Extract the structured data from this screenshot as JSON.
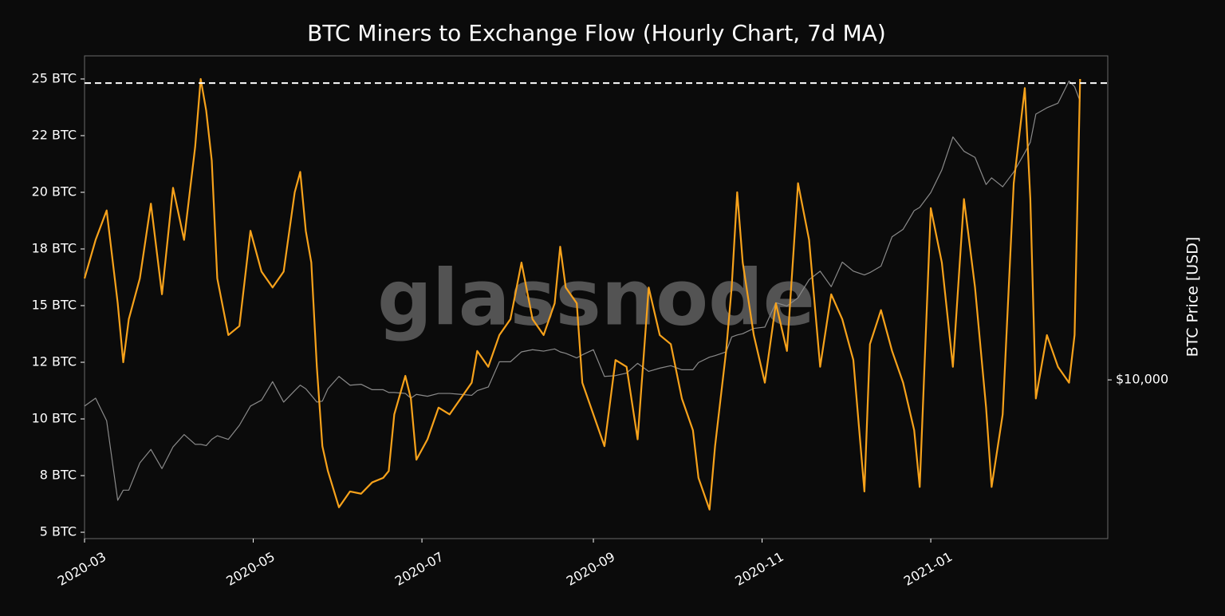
{
  "chart_data": {
    "type": "line",
    "title": "BTC Miners to Exchange Flow (Hourly Chart, 7d MA)",
    "y2_label": "BTC Price [USD]",
    "watermark": "glassnode",
    "x": [
      "2020-03-01",
      "2020-03-05",
      "2020-03-09",
      "2020-03-13",
      "2020-03-15",
      "2020-03-17",
      "2020-03-21",
      "2020-03-25",
      "2020-03-29",
      "2020-04-02",
      "2020-04-06",
      "2020-04-10",
      "2020-04-12",
      "2020-04-14",
      "2020-04-16",
      "2020-04-18",
      "2020-04-22",
      "2020-04-26",
      "2020-04-30",
      "2020-05-04",
      "2020-05-08",
      "2020-05-12",
      "2020-05-16",
      "2020-05-18",
      "2020-05-20",
      "2020-05-22",
      "2020-05-24",
      "2020-05-26",
      "2020-05-28",
      "2020-06-01",
      "2020-06-05",
      "2020-06-09",
      "2020-06-13",
      "2020-06-17",
      "2020-06-19",
      "2020-06-21",
      "2020-06-25",
      "2020-06-27",
      "2020-06-29",
      "2020-07-03",
      "2020-07-07",
      "2020-07-11",
      "2020-07-15",
      "2020-07-19",
      "2020-07-21",
      "2020-07-25",
      "2020-07-29",
      "2020-08-02",
      "2020-08-06",
      "2020-08-10",
      "2020-08-14",
      "2020-08-18",
      "2020-08-20",
      "2020-08-22",
      "2020-08-26",
      "2020-08-28",
      "2020-09-01",
      "2020-09-05",
      "2020-09-09",
      "2020-09-13",
      "2020-09-17",
      "2020-09-21",
      "2020-09-25",
      "2020-09-29",
      "2020-10-03",
      "2020-10-07",
      "2020-10-09",
      "2020-10-13",
      "2020-10-15",
      "2020-10-19",
      "2020-10-21",
      "2020-10-23",
      "2020-10-25",
      "2020-10-29",
      "2020-11-02",
      "2020-11-06",
      "2020-11-10",
      "2020-11-14",
      "2020-11-18",
      "2020-11-22",
      "2020-11-26",
      "2020-11-30",
      "2020-12-04",
      "2020-12-08",
      "2020-12-10",
      "2020-12-14",
      "2020-12-18",
      "2020-12-22",
      "2020-12-26",
      "2020-12-28",
      "2021-01-01",
      "2021-01-05",
      "2021-01-09",
      "2021-01-13",
      "2021-01-17",
      "2021-01-21",
      "2021-01-23",
      "2021-01-27",
      "2021-01-31",
      "2021-02-04",
      "2021-02-06",
      "2021-02-08",
      "2021-02-12",
      "2021-02-16",
      "2021-02-20",
      "2021-02-22",
      "2021-02-24"
    ],
    "series": [
      {
        "name": "BTC Miners to Exchange Flow",
        "color": "#f7a21b",
        "axis": "y",
        "values": [
          16.2,
          17.9,
          19.2,
          15.1,
          12.5,
          14.4,
          16.2,
          19.5,
          15.5,
          20.2,
          17.9,
          22,
          25,
          23.6,
          21.4,
          16.2,
          13.7,
          14.1,
          18.3,
          16.5,
          15.8,
          16.5,
          20,
          20.9,
          18.3,
          16.9,
          12.3,
          8.8,
          7.7,
          6.1,
          6.8,
          6.7,
          7.2,
          7.4,
          7.7,
          10.2,
          11.9,
          10.9,
          8.2,
          9.1,
          10.5,
          10.2,
          10.9,
          11.6,
          13,
          12.3,
          13.7,
          14.4,
          16.9,
          14.4,
          13.7,
          15.1,
          17.6,
          15.8,
          15.1,
          11.6,
          10.2,
          8.8,
          12.6,
          12.3,
          9.1,
          15.8,
          13.7,
          13.3,
          10.9,
          9.5,
          7.4,
          6,
          8.8,
          13,
          15.8,
          20,
          16.9,
          13.7,
          11.6,
          15.1,
          13,
          20.4,
          17.9,
          12.3,
          15.5,
          14.4,
          12.6,
          6.8,
          13.3,
          14.8,
          13,
          11.6,
          9.5,
          7,
          19.3,
          16.9,
          12.3,
          19.7,
          15.8,
          10.5,
          7,
          10.2,
          20.4,
          24.6,
          19.7,
          10.9,
          13.7,
          12.3,
          11.6,
          13.7,
          25
        ]
      },
      {
        "name": "BTC Price",
        "color": "#8a8a8a",
        "axis": "y2",
        "values": [
          8600,
          9000,
          7900,
          5000,
          5300,
          5300,
          6200,
          6700,
          6000,
          6800,
          7300,
          6900,
          6900,
          6850,
          7100,
          7250,
          7100,
          7700,
          8600,
          8900,
          9900,
          8800,
          9400,
          9700,
          9500,
          9150,
          8800,
          8850,
          9500,
          10200,
          9700,
          9750,
          9450,
          9450,
          9300,
          9300,
          9250,
          9000,
          9200,
          9100,
          9250,
          9250,
          9200,
          9150,
          9400,
          9600,
          11100,
          11100,
          11750,
          11900,
          11800,
          11950,
          11750,
          11650,
          11350,
          11550,
          11900,
          10200,
          10250,
          10400,
          11000,
          10500,
          10700,
          10850,
          10600,
          10600,
          11050,
          11400,
          11500,
          11750,
          12800,
          12950,
          13050,
          13450,
          13550,
          15600,
          15300,
          16050,
          17800,
          18700,
          17100,
          19700,
          18700,
          18300,
          18550,
          19250,
          22800,
          23800,
          26500,
          27000,
          29400,
          33500,
          40500,
          37300,
          36000,
          30800,
          32000,
          30400,
          33100,
          37000,
          39300,
          46200,
          47900,
          49200,
          55900,
          54100,
          49700
        ]
      }
    ],
    "xlim": [
      "2020-03-01",
      "2021-03-06"
    ],
    "xticks": [
      {
        "value": "2020-03-01",
        "label": "2020-03"
      },
      {
        "value": "2020-05-01",
        "label": "2020-05"
      },
      {
        "value": "2020-07-01",
        "label": "2020-07"
      },
      {
        "value": "2020-09-01",
        "label": "2020-09"
      },
      {
        "value": "2020-11-01",
        "label": "2020-11"
      },
      {
        "value": "2021-01-01",
        "label": "2021-01"
      }
    ],
    "ylim": [
      4.72,
      26.02
    ],
    "yticks": [
      {
        "value": 5,
        "label": "5 BTC"
      },
      {
        "value": 7.5,
        "label": "8 BTC"
      },
      {
        "value": 10,
        "label": "10 BTC"
      },
      {
        "value": 12.5,
        "label": "12 BTC"
      },
      {
        "value": 15,
        "label": "15 BTC"
      },
      {
        "value": 17.5,
        "label": "18 BTC"
      },
      {
        "value": 20,
        "label": "20 BTC"
      },
      {
        "value": 22.5,
        "label": "22 BTC"
      },
      {
        "value": 25,
        "label": "25 BTC"
      }
    ],
    "y2lim": [
      4010,
      64600
    ],
    "y2ticks": [
      {
        "value": 10000,
        "label": "$10,000"
      }
    ],
    "y2_log": true,
    "reference_line": 24.82,
    "grid": false
  }
}
